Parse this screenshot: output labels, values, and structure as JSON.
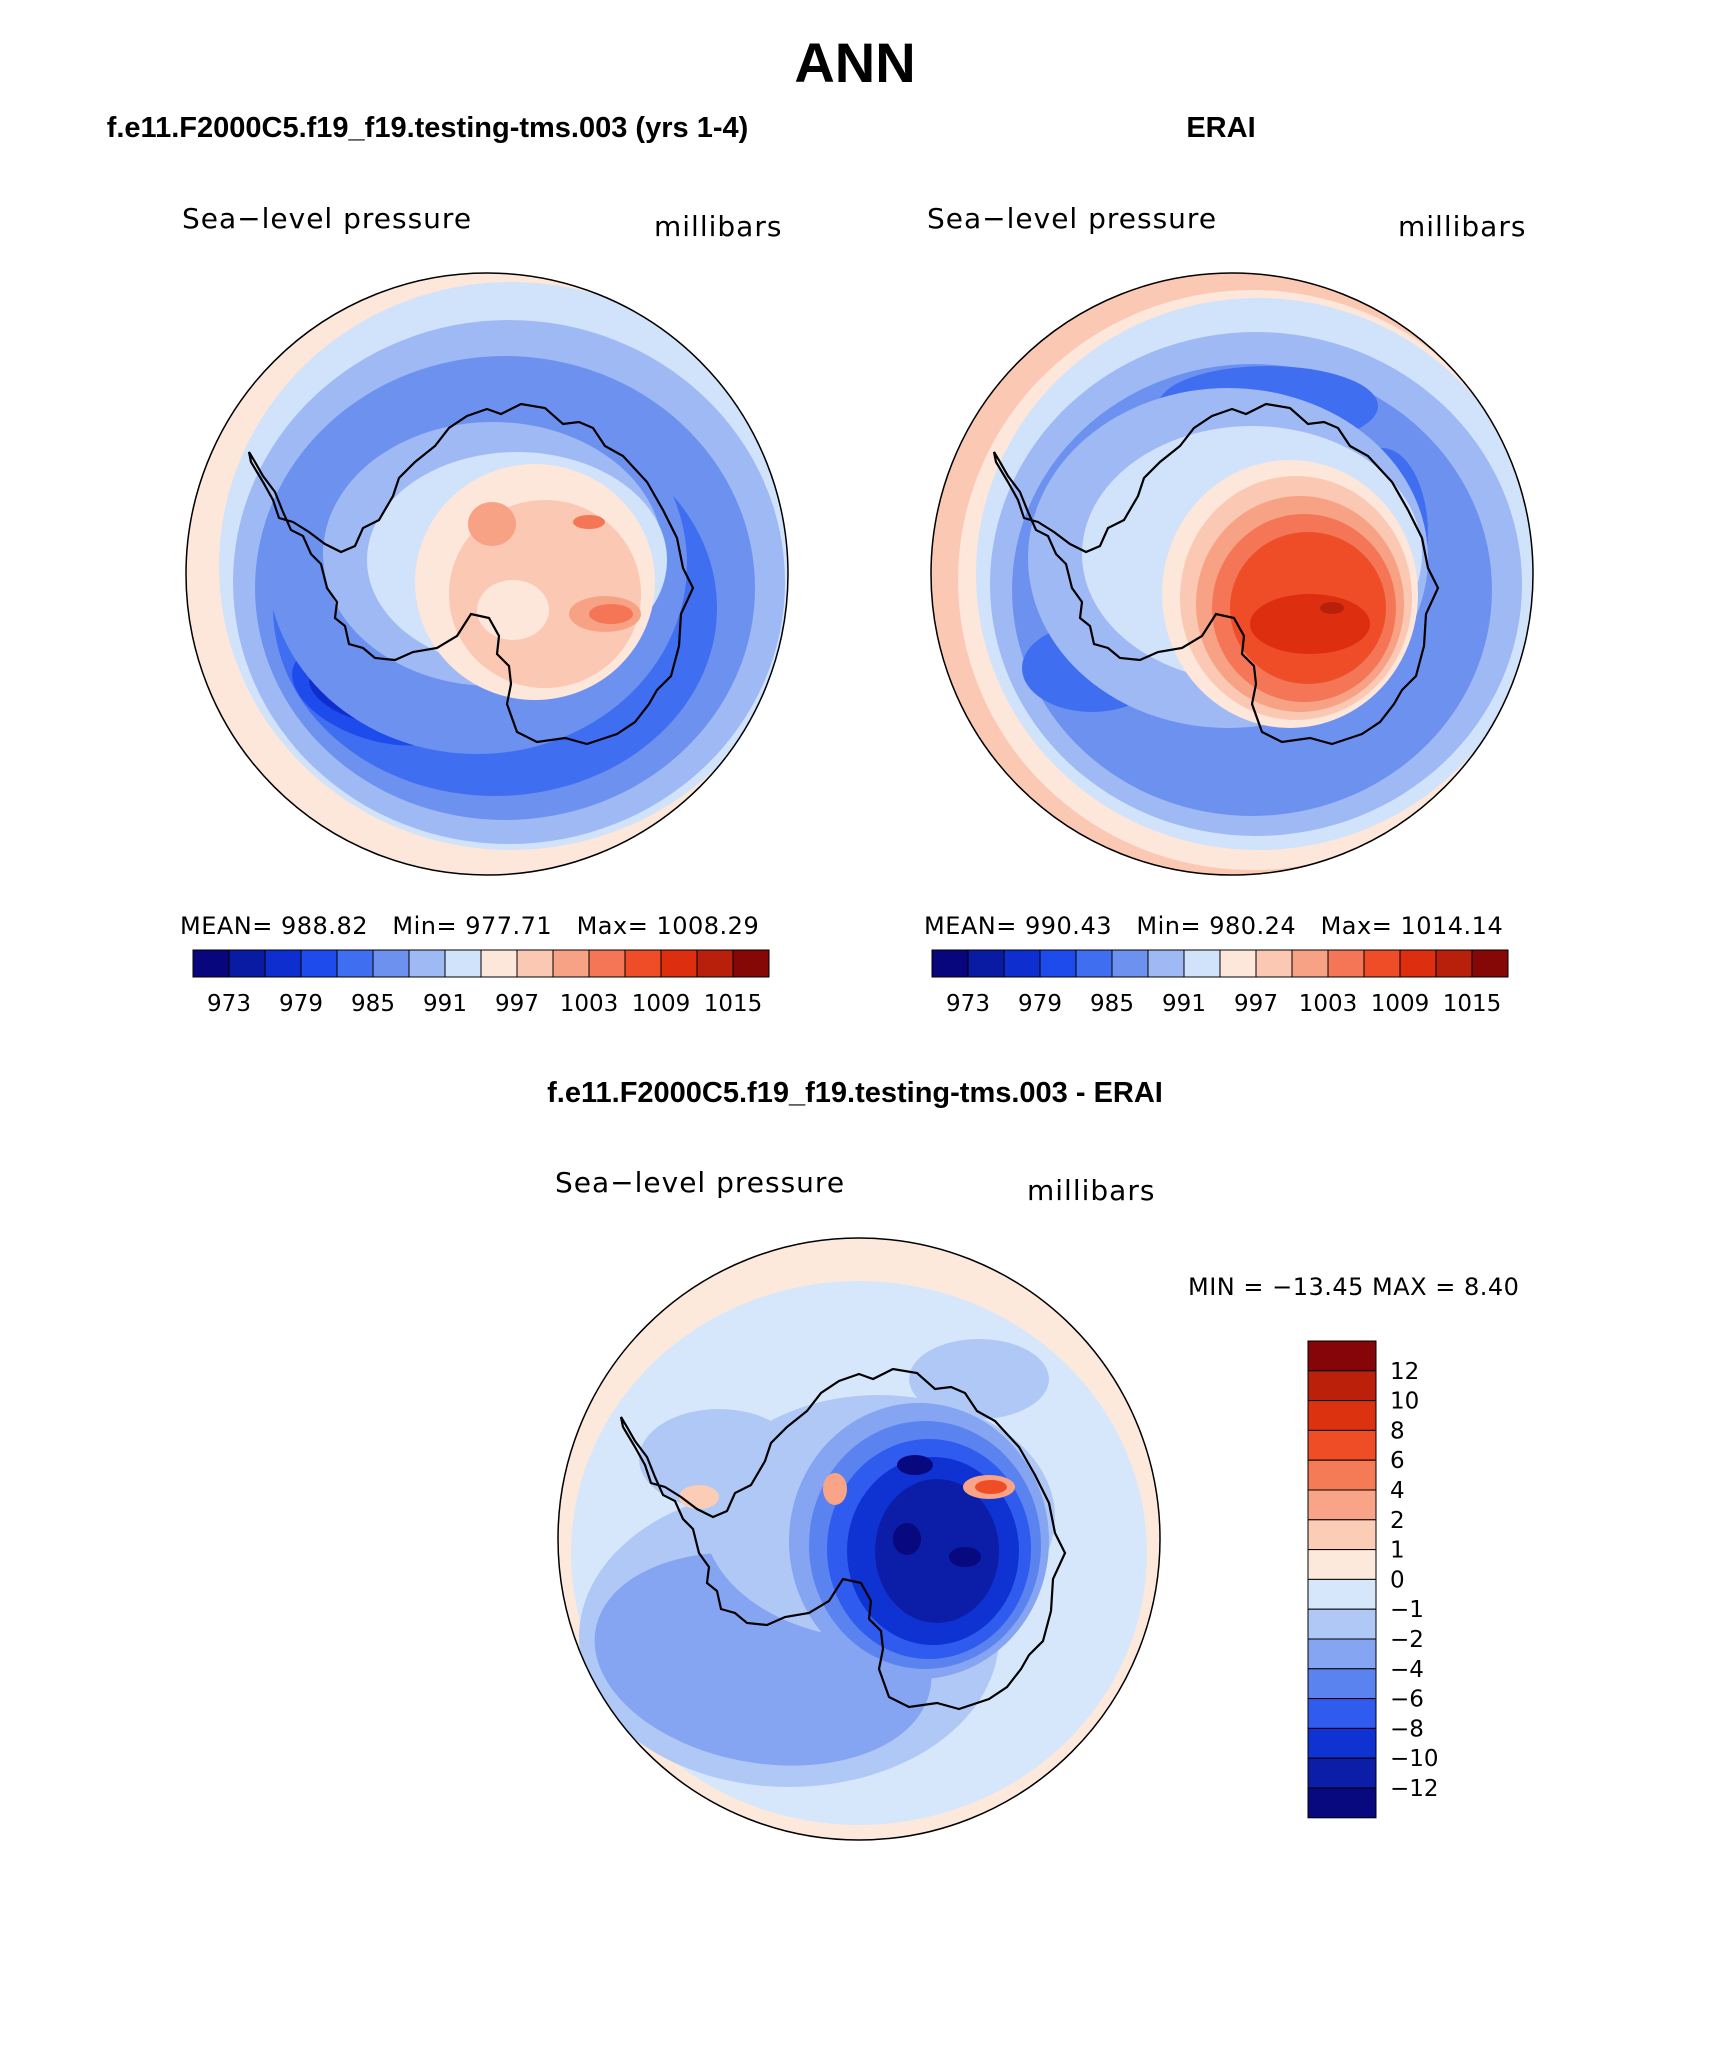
{
  "page": {
    "season": "ANN"
  },
  "panels": [
    {
      "title": "f.e11.F2000C5.f19_f19.testing-tms.003 (yrs 1-4)",
      "variable": "Sea−level pressure",
      "units": "millibars",
      "stats": {
        "mean_label": "MEAN=",
        "mean": "988.82",
        "min_label": "Min=",
        "min": "977.71",
        "max_label": "Max=",
        "max": "1008.29"
      }
    },
    {
      "title": "ERAI",
      "variable": "Sea−level pressure",
      "units": "millibars",
      "stats": {
        "mean_label": "MEAN=",
        "mean": "990.43",
        "min_label": "Min=",
        "min": "980.24",
        "max_label": "Max=",
        "max": "1014.14"
      }
    }
  ],
  "difference": {
    "title": "f.e11.F2000C5.f19_f19.testing-tms.003 - ERAI",
    "variable": "Sea−level pressure",
    "units": "millibars",
    "minmax_text": "MIN = −13.45 MAX =    8.40"
  },
  "chart_data": [
    {
      "type": "heatmap",
      "title": "f.e11.F2000C5.f19_f19.testing-tms.003 (yrs 1-4)",
      "projection": "south polar stereographic",
      "variable": "Sea-level pressure",
      "units": "millibars",
      "mean": 988.82,
      "min": 977.71,
      "max": 1008.29,
      "colorbar_levels": [
        970,
        973,
        976,
        979,
        982,
        985,
        988,
        991,
        994,
        997,
        1000,
        1003,
        1006,
        1009,
        1012,
        1015,
        1018
      ],
      "colorbar_tick_labels": [
        "973",
        "979",
        "985",
        "991",
        "997",
        "1003",
        "1009",
        "1015"
      ]
    },
    {
      "type": "heatmap",
      "title": "ERAI",
      "projection": "south polar stereographic",
      "variable": "Sea-level pressure",
      "units": "millibars",
      "mean": 990.43,
      "min": 980.24,
      "max": 1014.14,
      "colorbar_levels": [
        970,
        973,
        976,
        979,
        982,
        985,
        988,
        991,
        994,
        997,
        1000,
        1003,
        1006,
        1009,
        1012,
        1015,
        1018
      ],
      "colorbar_tick_labels": [
        "973",
        "979",
        "985",
        "991",
        "997",
        "1003",
        "1009",
        "1015"
      ]
    },
    {
      "type": "heatmap",
      "title": "f.e11.F2000C5.f19_f19.testing-tms.003 - ERAI",
      "projection": "south polar stereographic",
      "variable": "Sea-level pressure",
      "units": "millibars",
      "min": -13.45,
      "max": 8.4,
      "colorbar_tick_labels": [
        "12",
        "10",
        "8",
        "6",
        "4",
        "2",
        "1",
        "0",
        "−1",
        "−2",
        "−4",
        "−6",
        "−8",
        "−10",
        "−12"
      ]
    }
  ],
  "colors": {
    "abs_palette": [
      "#08067c",
      "#0a1ba3",
      "#0e2ecf",
      "#1e4bec",
      "#3f6ef0",
      "#6d91ef",
      "#9fb9f4",
      "#d1e2fb",
      "#fde6da",
      "#fbc8b3",
      "#f8a285",
      "#f57656",
      "#ee4d27",
      "#dd2e10",
      "#b9200c",
      "#850706"
    ],
    "diff_palette": [
      "#860508",
      "#bb200b",
      "#dd320f",
      "#ef4d25",
      "#f57a56",
      "#f9a487",
      "#fbcdb6",
      "#fde8dc",
      "#d7e7fb",
      "#b0c8f5",
      "#85a4f1",
      "#5a83ef",
      "#2f5bef",
      "#0f33d2",
      "#0c1da8",
      "#08087f"
    ],
    "coast": "#000000"
  }
}
